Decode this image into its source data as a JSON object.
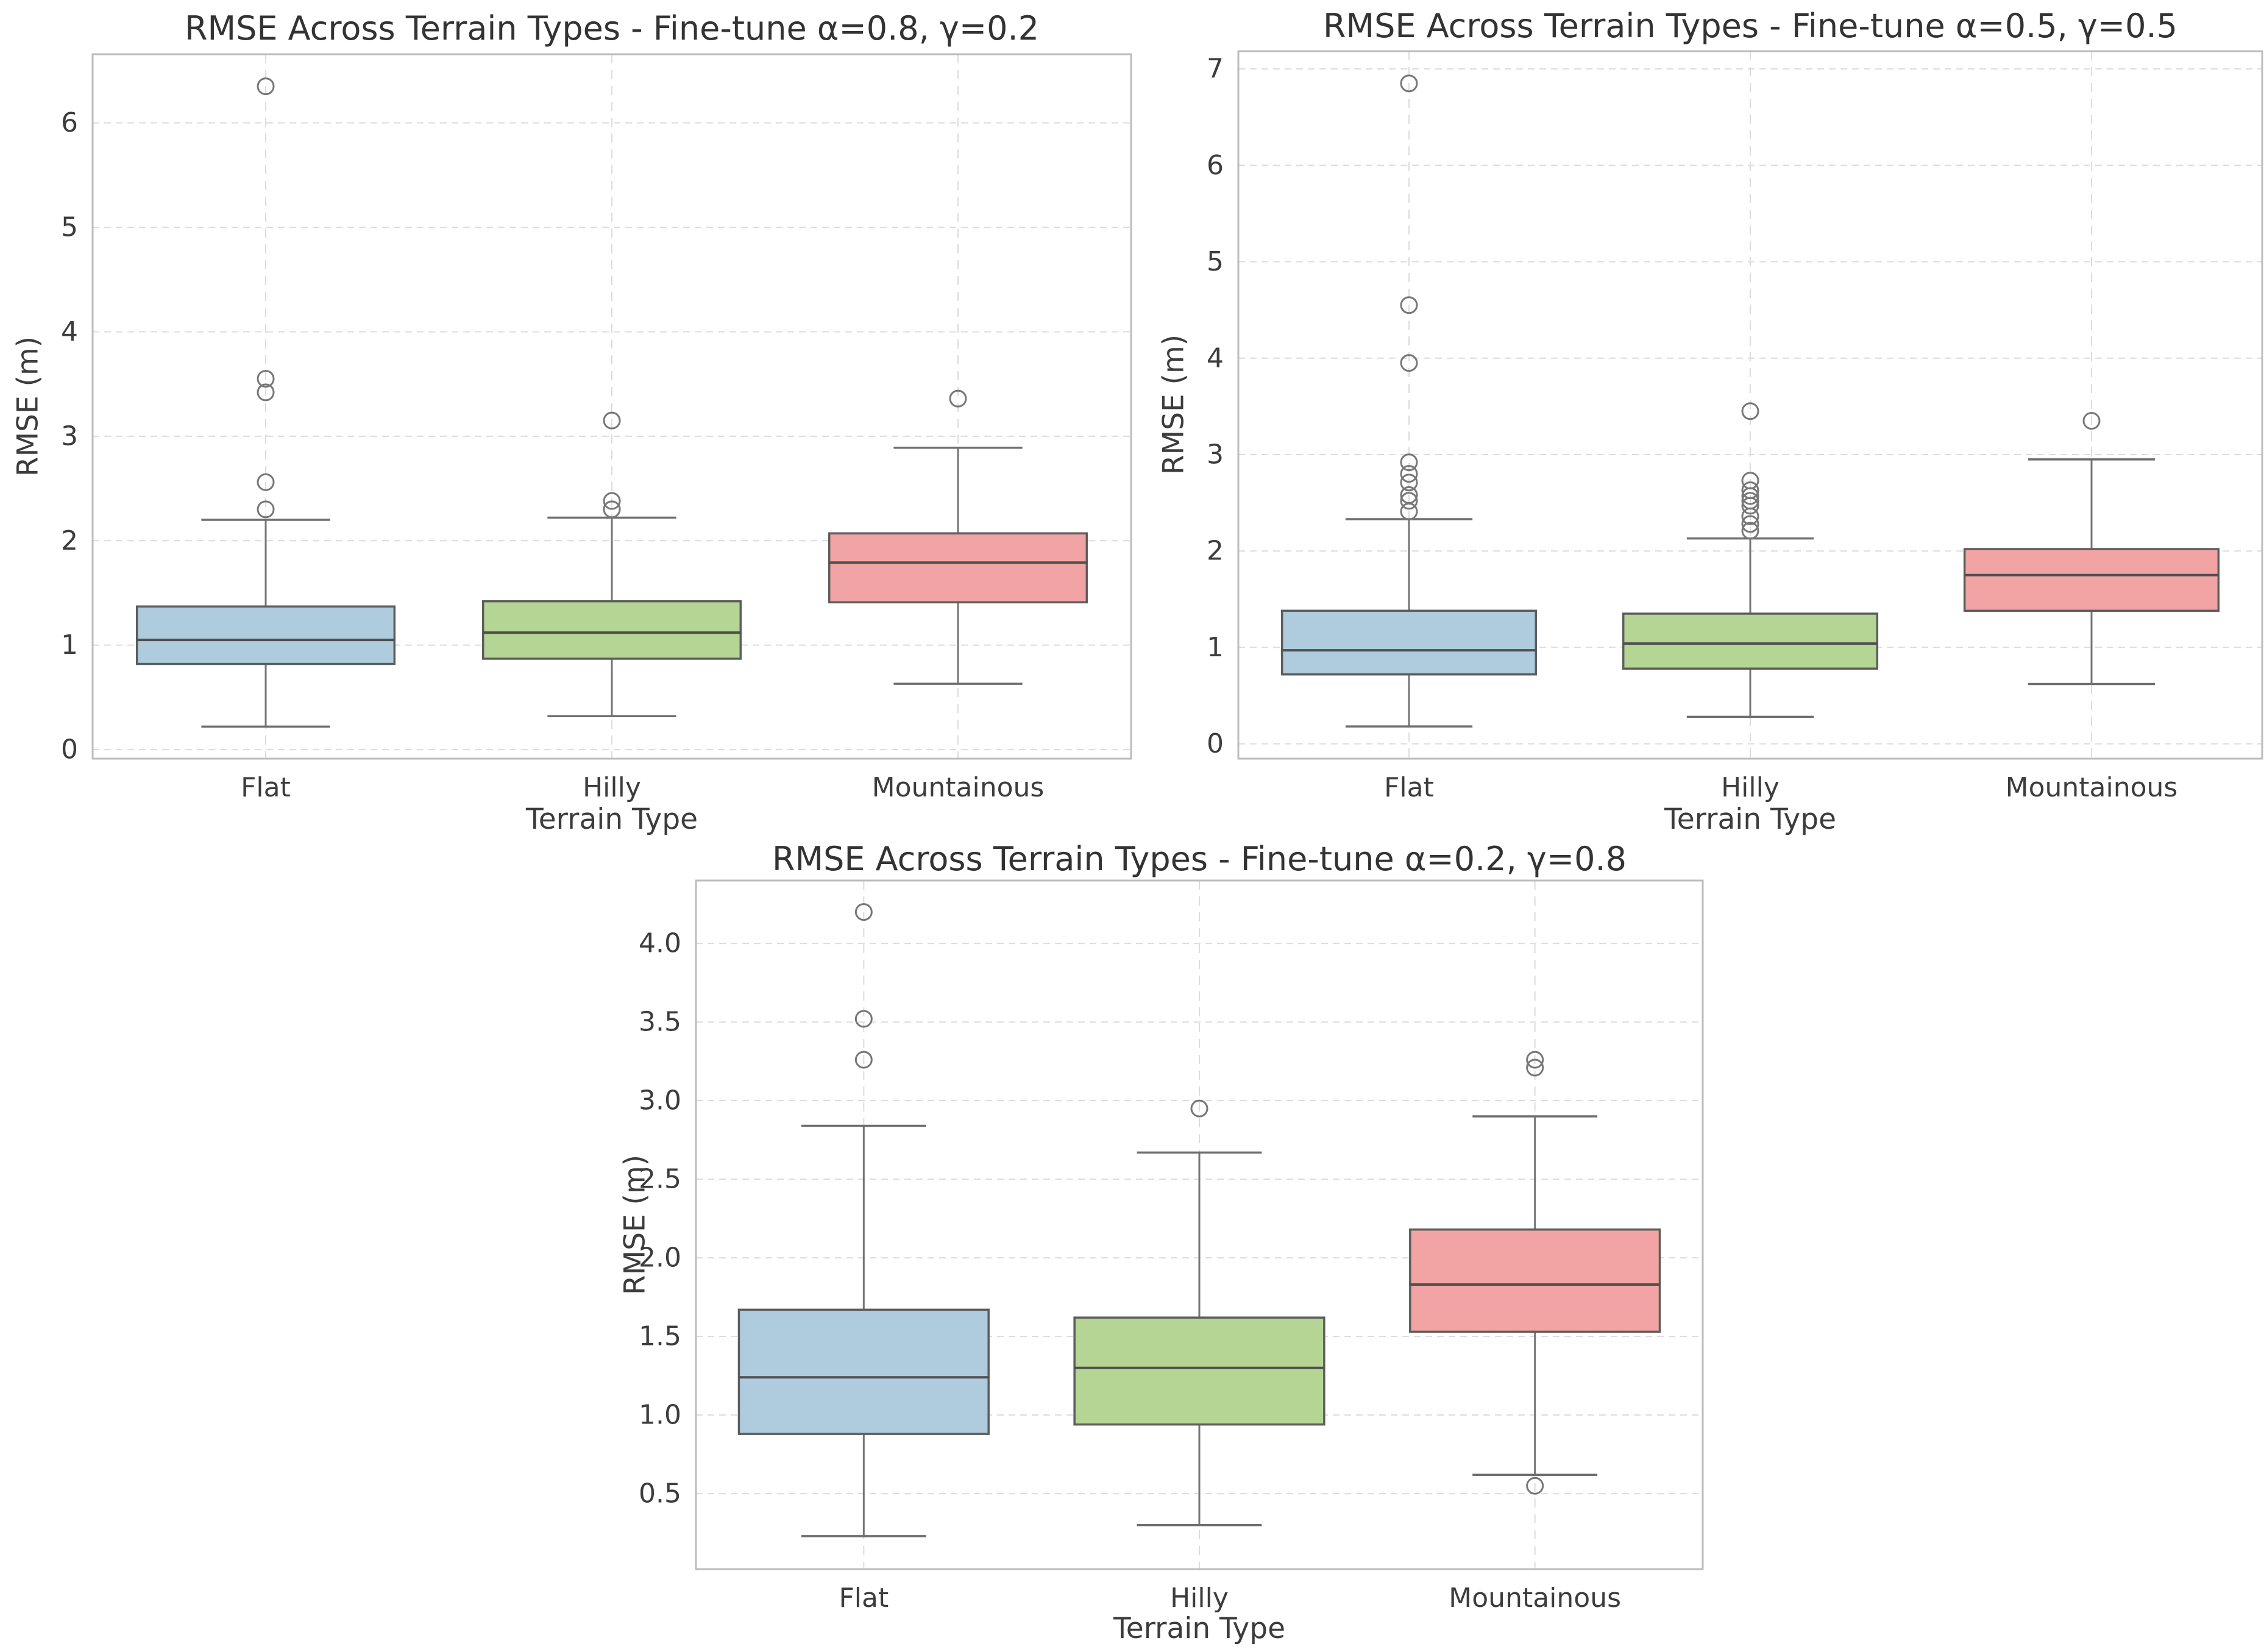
{
  "style": {
    "background": "#ffffff",
    "spine": "#bcbcbc",
    "grid": "#dcdcdc",
    "whisker": "#757575",
    "cap": "#6e6e6e",
    "box_edge": "#5d5d5d",
    "median_line": "#4f4f4f",
    "outlier": "#777777",
    "text": "#3c3c3c",
    "flat_color": "#AECCDE",
    "hilly_color": "#B4D593",
    "mountainous_color": "#F1A4A3"
  },
  "chart_data": [
    {
      "type": "box",
      "title": "RMSE Across Terrain Types - Fine-tune α=0.8, γ=0.2",
      "xlabel": "Terrain Type",
      "ylabel": "RMSE (m)",
      "categories": [
        "Flat",
        "Hilly",
        "Mountainous"
      ],
      "grid": true,
      "legend": "none",
      "ylim": [
        -0.087,
        6.657
      ],
      "yticks": [
        {
          "value": 0,
          "label": "0"
        },
        {
          "value": 1,
          "label": "1"
        },
        {
          "value": 2,
          "label": "2"
        },
        {
          "value": 3,
          "label": "3"
        },
        {
          "value": 4,
          "label": "4"
        },
        {
          "value": 5,
          "label": "5"
        },
        {
          "value": 6,
          "label": "6"
        }
      ],
      "boxes": [
        {
          "category": "Flat",
          "color": "#AECCDE",
          "whisker_low": 0.22,
          "q1": 0.82,
          "median": 1.05,
          "q3": 1.37,
          "whisker_high": 2.2,
          "outliers": [
            2.3,
            2.56,
            3.42,
            3.55,
            6.35
          ]
        },
        {
          "category": "Hilly",
          "color": "#B4D593",
          "whisker_low": 0.32,
          "q1": 0.87,
          "median": 1.12,
          "q3": 1.42,
          "whisker_high": 2.22,
          "outliers": [
            2.3,
            2.38,
            3.15
          ]
        },
        {
          "category": "Mountainous",
          "color": "#F1A4A3",
          "whisker_low": 0.63,
          "q1": 1.41,
          "median": 1.79,
          "q3": 2.07,
          "whisker_high": 2.89,
          "outliers": [
            3.36
          ]
        }
      ]
    },
    {
      "type": "box",
      "title": "RMSE Across Terrain Types - Fine-tune α=0.5, γ=0.5",
      "xlabel": "Terrain Type",
      "ylabel": "RMSE (m)",
      "categories": [
        "Flat",
        "Hilly",
        "Mountainous"
      ],
      "grid": true,
      "legend": "none",
      "ylim": [
        -0.154,
        7.184
      ],
      "yticks": [
        {
          "value": 0,
          "label": "0"
        },
        {
          "value": 1,
          "label": "1"
        },
        {
          "value": 2,
          "label": "2"
        },
        {
          "value": 3,
          "label": "3"
        },
        {
          "value": 4,
          "label": "4"
        },
        {
          "value": 5,
          "label": "5"
        },
        {
          "value": 6,
          "label": "6"
        },
        {
          "value": 7,
          "label": "7"
        }
      ],
      "boxes": [
        {
          "category": "Flat",
          "color": "#AECCDE",
          "whisker_low": 0.18,
          "q1": 0.72,
          "median": 0.97,
          "q3": 1.38,
          "whisker_high": 2.33,
          "outliers": [
            2.41,
            2.52,
            2.58,
            2.71,
            2.8,
            2.92,
            3.95,
            4.55,
            6.85
          ]
        },
        {
          "category": "Hilly",
          "color": "#B4D593",
          "whisker_low": 0.28,
          "q1": 0.78,
          "median": 1.04,
          "q3": 1.35,
          "whisker_high": 2.13,
          "outliers": [
            2.21,
            2.28,
            2.36,
            2.47,
            2.52,
            2.57,
            2.63,
            2.73,
            3.45
          ]
        },
        {
          "category": "Mountainous",
          "color": "#F1A4A3",
          "whisker_low": 0.62,
          "q1": 1.38,
          "median": 1.75,
          "q3": 2.02,
          "whisker_high": 2.95,
          "outliers": [
            3.35
          ]
        }
      ]
    },
    {
      "type": "box",
      "title": "RMSE Across Terrain Types - Fine-tune α=0.2, γ=0.8",
      "xlabel": "Terrain Type",
      "ylabel": "RMSE (m)",
      "categories": [
        "Flat",
        "Hilly",
        "Mountainous"
      ],
      "grid": true,
      "legend": "none",
      "ylim": [
        0.02,
        4.4
      ],
      "yticks": [
        {
          "value": 0.5,
          "label": "0.5"
        },
        {
          "value": 1.0,
          "label": "1.0"
        },
        {
          "value": 1.5,
          "label": "1.5"
        },
        {
          "value": 2.0,
          "label": "2.0"
        },
        {
          "value": 2.5,
          "label": "2.5"
        },
        {
          "value": 3.0,
          "label": "3.0"
        },
        {
          "value": 3.5,
          "label": "3.5"
        },
        {
          "value": 4.0,
          "label": "4.0"
        }
      ],
      "boxes": [
        {
          "category": "Flat",
          "color": "#AECCDE",
          "whisker_low": 0.23,
          "q1": 0.88,
          "median": 1.24,
          "q3": 1.67,
          "whisker_high": 2.84,
          "outliers": [
            3.26,
            3.52,
            4.2
          ]
        },
        {
          "category": "Hilly",
          "color": "#B4D593",
          "whisker_low": 0.3,
          "q1": 0.94,
          "median": 1.3,
          "q3": 1.62,
          "whisker_high": 2.67,
          "outliers": [
            2.95
          ]
        },
        {
          "category": "Mountainous",
          "color": "#F1A4A3",
          "whisker_low": 0.62,
          "q1": 1.53,
          "median": 1.83,
          "q3": 2.18,
          "whisker_high": 2.9,
          "outliers": [
            0.55,
            3.21,
            3.26
          ]
        }
      ]
    }
  ]
}
